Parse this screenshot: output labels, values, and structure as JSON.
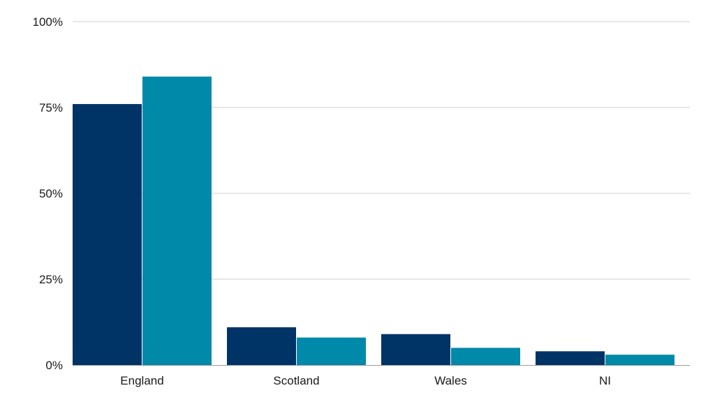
{
  "chart_data": {
    "type": "bar",
    "categories": [
      "England",
      "Scotland",
      "Wales",
      "NI"
    ],
    "series": [
      {
        "values": [
          76,
          11,
          9,
          4
        ],
        "color": "#003366"
      },
      {
        "values": [
          84,
          8,
          5,
          3
        ],
        "color": "#0089A8"
      }
    ],
    "ylim": [
      0,
      100
    ],
    "yticks": [
      0,
      25,
      50,
      75,
      100
    ],
    "ytick_labels": [
      "0%",
      "25%",
      "50%",
      "75%",
      "100%"
    ],
    "grid": true,
    "legend": "none"
  }
}
